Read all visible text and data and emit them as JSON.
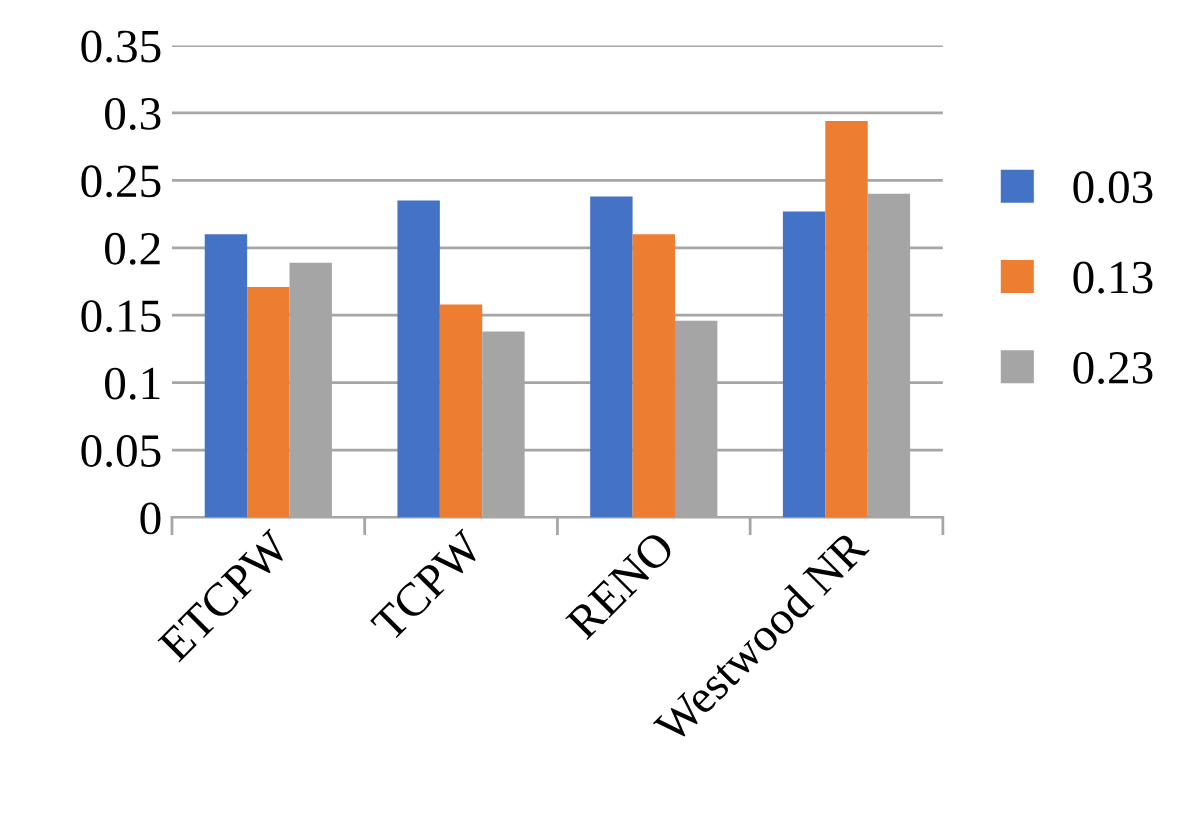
{
  "chart_data": {
    "type": "bar",
    "categories": [
      "ETCPW",
      "TCPW",
      "RENO",
      "Westwood NR"
    ],
    "series": [
      {
        "name": "0.03",
        "color": "#4472c4",
        "values": [
          0.21,
          0.235,
          0.238,
          0.227
        ]
      },
      {
        "name": "0.13",
        "color": "#ed7d31",
        "values": [
          0.171,
          0.158,
          0.21,
          0.294
        ]
      },
      {
        "name": "0.23",
        "color": "#a5a5a5",
        "values": [
          0.189,
          0.138,
          0.146,
          0.24
        ]
      }
    ],
    "ylim": [
      0,
      0.35
    ],
    "yticks": [
      0,
      0.05,
      0.1,
      0.15,
      0.2,
      0.25,
      0.3,
      0.35
    ],
    "grid": "y",
    "legend": "right"
  }
}
